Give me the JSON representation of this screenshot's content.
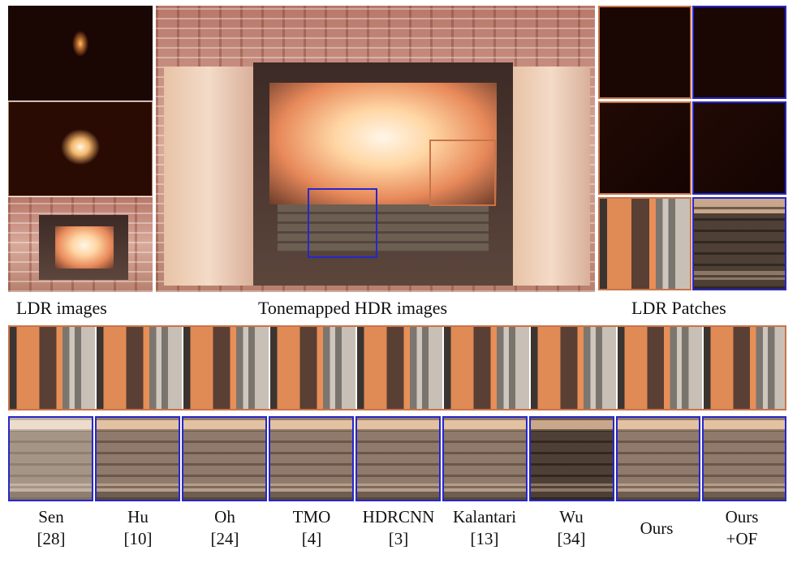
{
  "captions": {
    "ldr_images": "LDR images",
    "tonemapped": "Tonemapped HDR images",
    "ldr_patches": "LDR Patches"
  },
  "colors": {
    "orange_box": "#c8744a",
    "blue_box": "#2727c9"
  },
  "methods": [
    {
      "name": "Sen",
      "ref": "[28]"
    },
    {
      "name": "Hu",
      "ref": "[10]"
    },
    {
      "name": "Oh",
      "ref": "[24]"
    },
    {
      "name": "TMO",
      "ref": "[4]"
    },
    {
      "name": "HDRCNN",
      "ref": "[3]"
    },
    {
      "name": "Kalantari",
      "ref": "[13]"
    },
    {
      "name": "Wu",
      "ref": "[34]"
    },
    {
      "name": "Ours",
      "ref": ""
    },
    {
      "name": "Ours",
      "ref": "+OF"
    }
  ]
}
